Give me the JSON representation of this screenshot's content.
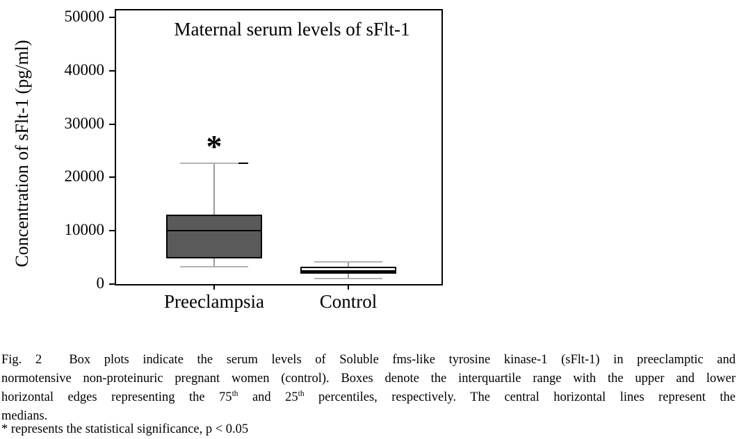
{
  "figure": {
    "background": "#ffffff"
  },
  "chart_data": {
    "type": "box",
    "title": "Maternal serum levels of sFlt-1",
    "ylabel": "Concentration of sFlt-1  (pg/ml)",
    "xlabel": "",
    "ylim": [
      0,
      50000
    ],
    "yticks": [
      0,
      10000,
      20000,
      30000,
      40000,
      50000
    ],
    "categories": [
      "Preeclampsia",
      "Control"
    ],
    "grid": false,
    "legend": "none",
    "series": [
      {
        "name": "Preeclampsia",
        "whisker_low": 3300,
        "q1": 4800,
        "median": 10000,
        "q3": 13000,
        "whisker_high": 22700,
        "box_fill": "#5a5a5a",
        "annotation": "*"
      },
      {
        "name": "Control",
        "whisker_low": 1050,
        "q1": 1900,
        "median": 2500,
        "q3": 3200,
        "whisker_high": 4200,
        "box_fill": "#ffffff",
        "annotation": ""
      }
    ],
    "colors": {
      "frame": "#000000",
      "box_border": "#000000",
      "median": "#000000",
      "whisker": "#9a9a9a",
      "cap": "#b2b2b2",
      "text": "#000000"
    }
  },
  "caption": {
    "lines": [
      {
        "justify": true,
        "segments": [
          {
            "t": "Fig. 2  Box plots indicate the serum levels of Soluble fms-like tyrosine kinase-1 (sFlt-1) in preeclamptic and"
          }
        ]
      },
      {
        "justify": true,
        "segments": [
          {
            "t": "normotensive non-proteinuric pregnant women (control). Boxes denote the interquartile range with the upper and lower"
          }
        ]
      },
      {
        "justify": true,
        "segments": [
          {
            "t": "horizontal edges representing the 75"
          },
          {
            "t": "th",
            "sup": true
          },
          {
            "t": " and 25"
          },
          {
            "t": "th",
            "sup": true
          },
          {
            "t": " percentiles, respectively. The central horizontal lines represent the"
          }
        ]
      },
      {
        "justify": false,
        "segments": [
          {
            "t": "medians."
          }
        ]
      },
      {
        "justify": false,
        "clipped": true,
        "segments": [
          {
            "t": "* represents the statistical significance, p < 0.05"
          }
        ]
      }
    ]
  }
}
